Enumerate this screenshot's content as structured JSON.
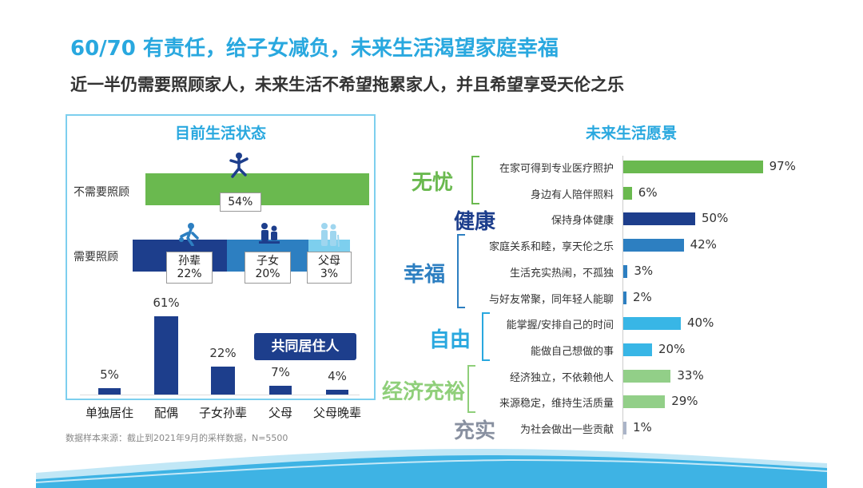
{
  "title": "60/70 有责任，给子女减负，未来生活渴望家庭幸福",
  "subtitle": "近一半仍需要照顾家人，未来生活不希望拖累家人，并且希望享受天伦之乐",
  "source": "数据样本来源：截止到2021年9月的采样数据，N=5500",
  "colors": {
    "accent": "#29a8df",
    "navy": "#1d3e8c",
    "green": "#6ab94f",
    "lightgreen": "#92cf88",
    "mid_blue": "#2d7fc1",
    "sky": "#38b6e6"
  },
  "chart_data": [
    {
      "type": "bar",
      "title": "目前生活状态",
      "rows": [
        {
          "label": "不需要照顾",
          "segments": [
            {
              "name": "",
              "value": 54,
              "text": "54%",
              "color": "#6ab94f"
            }
          ]
        },
        {
          "label": "需要照顾",
          "segments": [
            {
              "name": "孙辈",
              "value": 22,
              "text": "22%",
              "color": "#1d3e8c"
            },
            {
              "name": "子女",
              "value": 20,
              "text": "20%",
              "color": "#2d7fc1"
            },
            {
              "name": "父母",
              "value": 3,
              "text": "3%",
              "color": "#7dcfee"
            }
          ]
        }
      ]
    },
    {
      "type": "bar",
      "title": "共同居住人",
      "categories": [
        "单独居住",
        "配偶",
        "子女孙辈",
        "父母",
        "父母晚辈"
      ],
      "values": [
        5,
        61,
        22,
        7,
        4
      ],
      "labels": [
        "5%",
        "61%",
        "22%",
        "7%",
        "4%"
      ],
      "ylim": [
        0,
        61
      ]
    },
    {
      "type": "bar",
      "orientation": "horizontal",
      "title": "未来生活愿景",
      "categories": [
        "在家可得到专业医疗照护",
        "身边有人陪伴照料",
        "保持身体健康",
        "家庭关系和睦，享天伦之乐",
        "生活充实热闹，不孤独",
        "与好友常聚，同年轻人能聊",
        "能掌握/安排自己的时间",
        "能做自己想做的事",
        "经济独立，不依赖他人",
        "来源稳定，维持生活质量",
        "为社会做出一些贡献"
      ],
      "values": [
        97,
        6,
        50,
        42,
        3,
        2,
        40,
        20,
        33,
        29,
        1
      ],
      "labels": [
        "97%",
        "6%",
        "50%",
        "42%",
        "3%",
        "2%",
        "40%",
        "20%",
        "33%",
        "29%",
        "1%"
      ],
      "colors": [
        "#6ab94f",
        "#6ab94f",
        "#1d3e8c",
        "#2d7fc1",
        "#2d7fc1",
        "#2d7fc1",
        "#38b6e6",
        "#38b6e6",
        "#92cf88",
        "#92cf88",
        "#aab4c8"
      ],
      "groups": [
        {
          "name": "无忧",
          "rows": [
            0,
            1
          ],
          "color": "#6ab94f"
        },
        {
          "name": "健康",
          "rows": [
            2
          ],
          "color": "#1d3e8c"
        },
        {
          "name": "幸福",
          "rows": [
            3,
            4,
            5
          ],
          "color": "#2d7fc1"
        },
        {
          "name": "自由",
          "rows": [
            6,
            7
          ],
          "color": "#29a8df"
        },
        {
          "name": "经济充裕",
          "rows": [
            8,
            9
          ],
          "color": "#8fcf7a"
        },
        {
          "name": "充实",
          "rows": [
            10
          ],
          "color": "#8890a0"
        }
      ]
    }
  ]
}
